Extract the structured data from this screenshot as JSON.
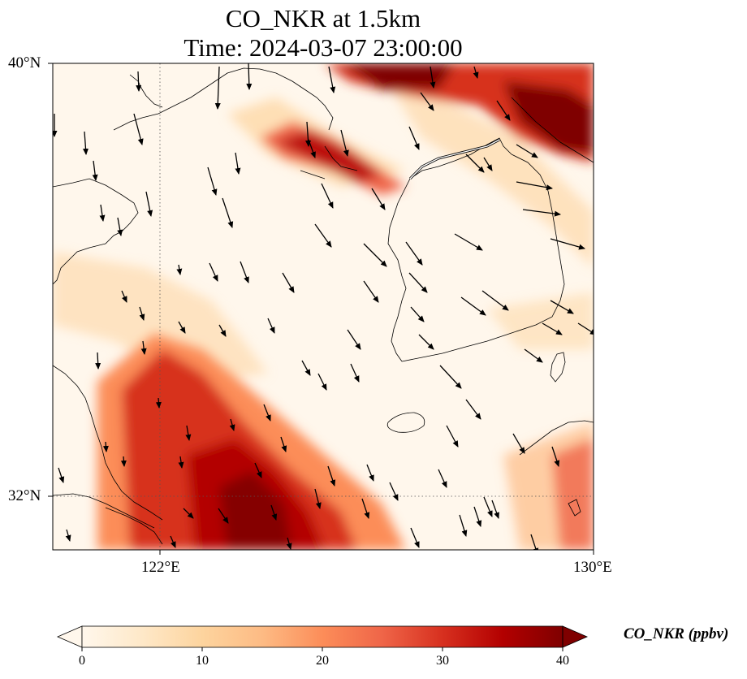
{
  "title": {
    "line1": "CO_NKR at 1.5km",
    "line2": "Time: 2024-03-07 23:00:00"
  },
  "map": {
    "lon_range": [
      119,
      130
    ],
    "lat_range": [
      31,
      40
    ],
    "x_ticks": [
      {
        "value": 122,
        "label": "122°E"
      },
      {
        "value": 130,
        "label": "130°E"
      }
    ],
    "y_ticks": [
      {
        "value": 40,
        "label": "40°N"
      },
      {
        "value": 32,
        "label": "32°N"
      }
    ],
    "gridlines": {
      "lon": [
        122
      ],
      "lat": [
        32
      ],
      "style": "dotted"
    },
    "coastlines": true,
    "wind_vectors": true
  },
  "colorbar": {
    "label": "CO_NKR (ppbv)",
    "min": 0,
    "max": 40,
    "ticks": [
      "0",
      "10",
      "20",
      "30",
      "40"
    ],
    "colormap": "OrRd",
    "extend": "both",
    "colors": [
      "#fff7ec",
      "#fee8c8",
      "#fdd49e",
      "#fdbb84",
      "#fc8d59",
      "#ef6548",
      "#d7301f",
      "#b30000",
      "#7f0000"
    ]
  }
}
